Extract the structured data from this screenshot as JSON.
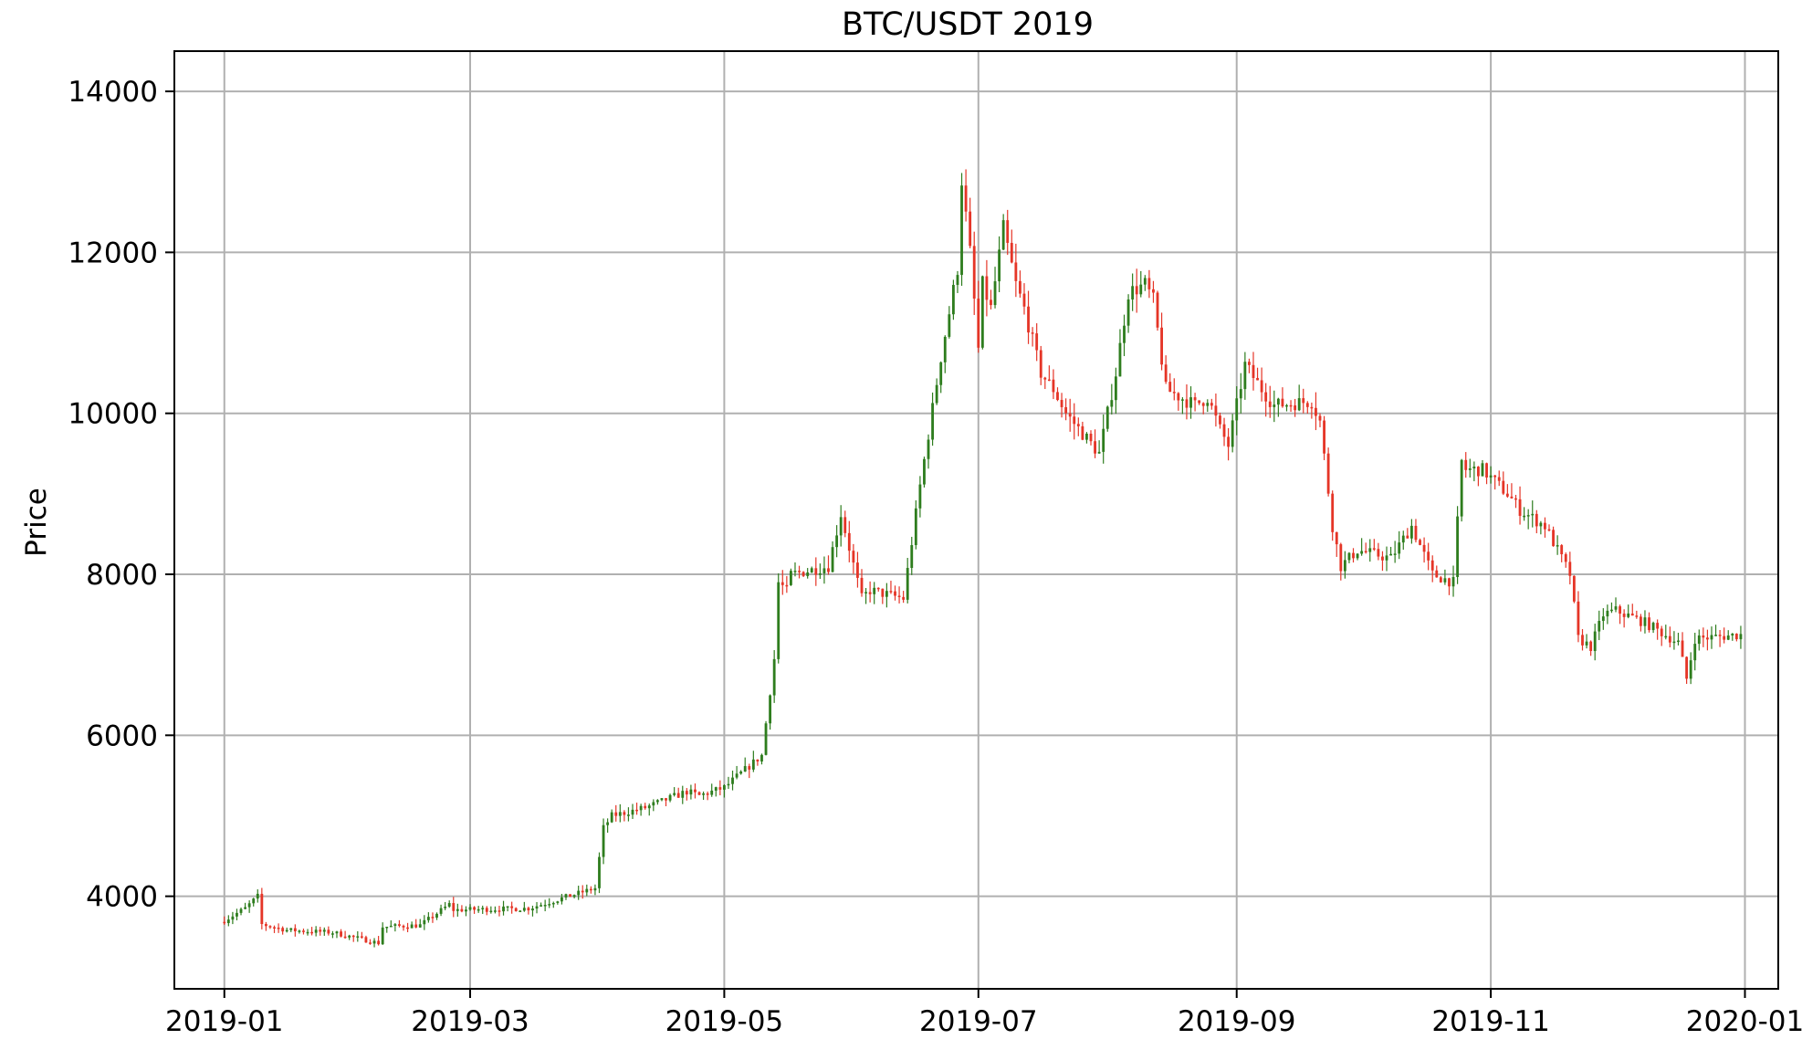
{
  "chart_data": {
    "type": "candlestick",
    "title": "BTC/USDT 2019",
    "xlabel": "",
    "ylabel": "Price",
    "grid": true,
    "colors": {
      "up": "#2e7d1e",
      "down": "#e53527",
      "grid": "#b0b0b0",
      "axis": "#000000"
    },
    "xlim": [
      "2018-12-20",
      "2020-01-09"
    ],
    "ylim": [
      2850,
      14500
    ],
    "x_ticks": [
      "2019-01",
      "2019-03",
      "2019-05",
      "2019-07",
      "2019-09",
      "2019-11",
      "2020-01"
    ],
    "y_ticks": [
      4000,
      6000,
      8000,
      10000,
      12000,
      14000
    ],
    "close_path_dates": [
      "2019-01-01",
      "2019-01-06",
      "2019-01-09",
      "2019-01-10",
      "2019-01-16",
      "2019-01-27",
      "2019-02-07",
      "2019-02-08",
      "2019-02-17",
      "2019-02-24",
      "2019-02-25",
      "2019-03-15",
      "2019-03-31",
      "2019-04-02",
      "2019-04-04",
      "2019-04-12",
      "2019-04-22",
      "2019-04-25",
      "2019-05-01",
      "2019-05-10",
      "2019-05-13",
      "2019-05-14",
      "2019-05-16",
      "2019-05-17",
      "2019-05-26",
      "2019-05-29",
      "2019-06-03",
      "2019-06-05",
      "2019-06-13",
      "2019-06-17",
      "2019-06-22",
      "2019-06-26",
      "2019-06-27",
      "2019-06-29",
      "2019-07-01",
      "2019-07-02",
      "2019-07-04",
      "2019-07-07",
      "2019-07-10",
      "2019-07-12",
      "2019-07-16",
      "2019-07-19",
      "2019-07-22",
      "2019-07-30",
      "2019-08-03",
      "2019-08-06",
      "2019-08-10",
      "2019-08-12",
      "2019-08-15",
      "2019-08-22",
      "2019-08-25",
      "2019-08-28",
      "2019-08-30",
      "2019-09-03",
      "2019-09-07",
      "2019-09-10",
      "2019-09-19",
      "2019-09-21",
      "2019-09-24",
      "2019-09-26",
      "2019-09-30",
      "2019-10-08",
      "2019-10-13",
      "2019-10-18",
      "2019-10-23",
      "2019-10-25",
      "2019-10-26",
      "2019-10-30",
      "2019-11-05",
      "2019-11-08",
      "2019-11-14",
      "2019-11-20",
      "2019-11-22",
      "2019-11-25",
      "2019-11-28",
      "2019-12-01",
      "2019-12-08",
      "2019-12-16",
      "2019-12-18",
      "2019-12-20",
      "2019-12-31"
    ],
    "close_path_values": [
      3700,
      3850,
      4000,
      3650,
      3580,
      3550,
      3420,
      3620,
      3640,
      3900,
      3830,
      3850,
      4100,
      4850,
      5000,
      5100,
      5300,
      5250,
      5350,
      5750,
      6950,
      7900,
      7800,
      8000,
      8100,
      8750,
      7700,
      7800,
      7700,
      9100,
      10700,
      11800,
      12900,
      12000,
      10800,
      11600,
      11300,
      12300,
      11600,
      11300,
      10500,
      10300,
      10000,
      9500,
      10500,
      11500,
      11600,
      11400,
      10300,
      10100,
      10200,
      9800,
      9600,
      10600,
      10300,
      10100,
      10150,
      9900,
      8600,
      8100,
      8300,
      8200,
      8600,
      8000,
      7900,
      9400,
      9300,
      9300,
      9000,
      8800,
      8600,
      8000,
      7200,
      7100,
      7500,
      7550,
      7400,
      7150,
      6700,
      7200,
      7250
    ],
    "noise_seed": 7
  }
}
